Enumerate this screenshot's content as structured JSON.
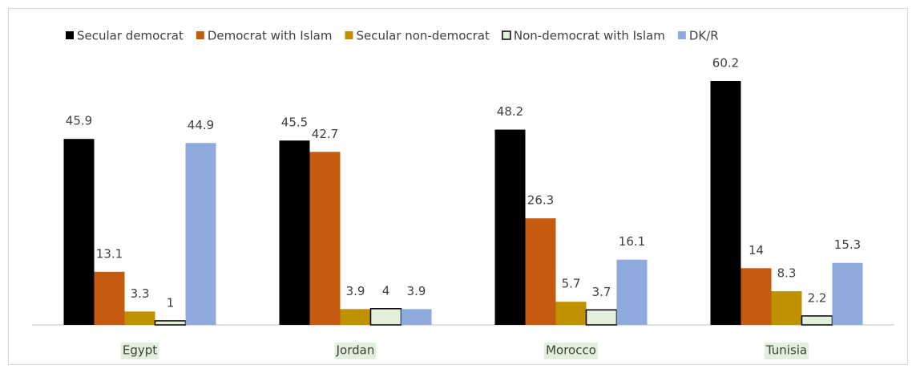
{
  "chart_data": {
    "type": "bar",
    "categories": [
      "Egypt",
      "Jordan",
      "Morocco",
      "Tunisia"
    ],
    "series": [
      {
        "name": "Secular democrat",
        "color": "#000000",
        "values": [
          45.9,
          45.5,
          48.2,
          60.2
        ]
      },
      {
        "name": "Democrat with Islam",
        "color": "#c55a11",
        "values": [
          13.1,
          42.7,
          26.3,
          14
        ]
      },
      {
        "name": "Secular non-democrat",
        "color": "#bf9000",
        "values": [
          3.3,
          3.9,
          5.7,
          8.3
        ]
      },
      {
        "name": "Non-democrat  with Islam",
        "color": "#e2efda",
        "values": [
          1,
          4,
          3.7,
          2.2
        ]
      },
      {
        "name": "DK/R",
        "color": "#8faadc",
        "values": [
          44.9,
          3.9,
          16.1,
          15.3
        ]
      }
    ],
    "ylim": [
      0,
      70
    ],
    "legend": "top"
  }
}
